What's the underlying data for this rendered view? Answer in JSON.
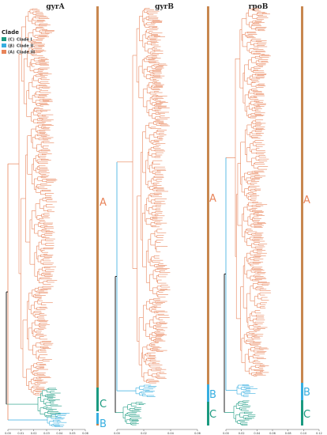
{
  "panels": [
    {
      "title": "gyrA",
      "axis_ticks": [
        "0.00",
        "0.01",
        "0.02",
        "0.03",
        "0.04",
        "0.05",
        "0.06"
      ]
    },
    {
      "title": "gyrB",
      "axis_ticks": [
        "0.00",
        "0.02",
        "0.04",
        "0.06"
      ]
    },
    {
      "title": "rpoB",
      "axis_ticks": [
        "0.00",
        "0.02",
        "0.04",
        "0.06",
        "0.08",
        "0.10",
        "0.12"
      ]
    }
  ],
  "legend": {
    "title": "Clade",
    "items": [
      {
        "symbol": "(C)",
        "label": "Clade I",
        "color": "#1a9a80"
      },
      {
        "symbol": "(β)",
        "label": "Clade II",
        "color": "#36aee0"
      },
      {
        "symbol": "(A)",
        "label": "Clade III",
        "color": "#e8845a"
      }
    ]
  },
  "clade_bars": {
    "labels": [
      "A",
      "B",
      "C"
    ],
    "colors": {
      "A": "#e8845a",
      "B": "#36aee0",
      "C": "#1a9a80",
      "bar": "#c8874f"
    }
  }
}
